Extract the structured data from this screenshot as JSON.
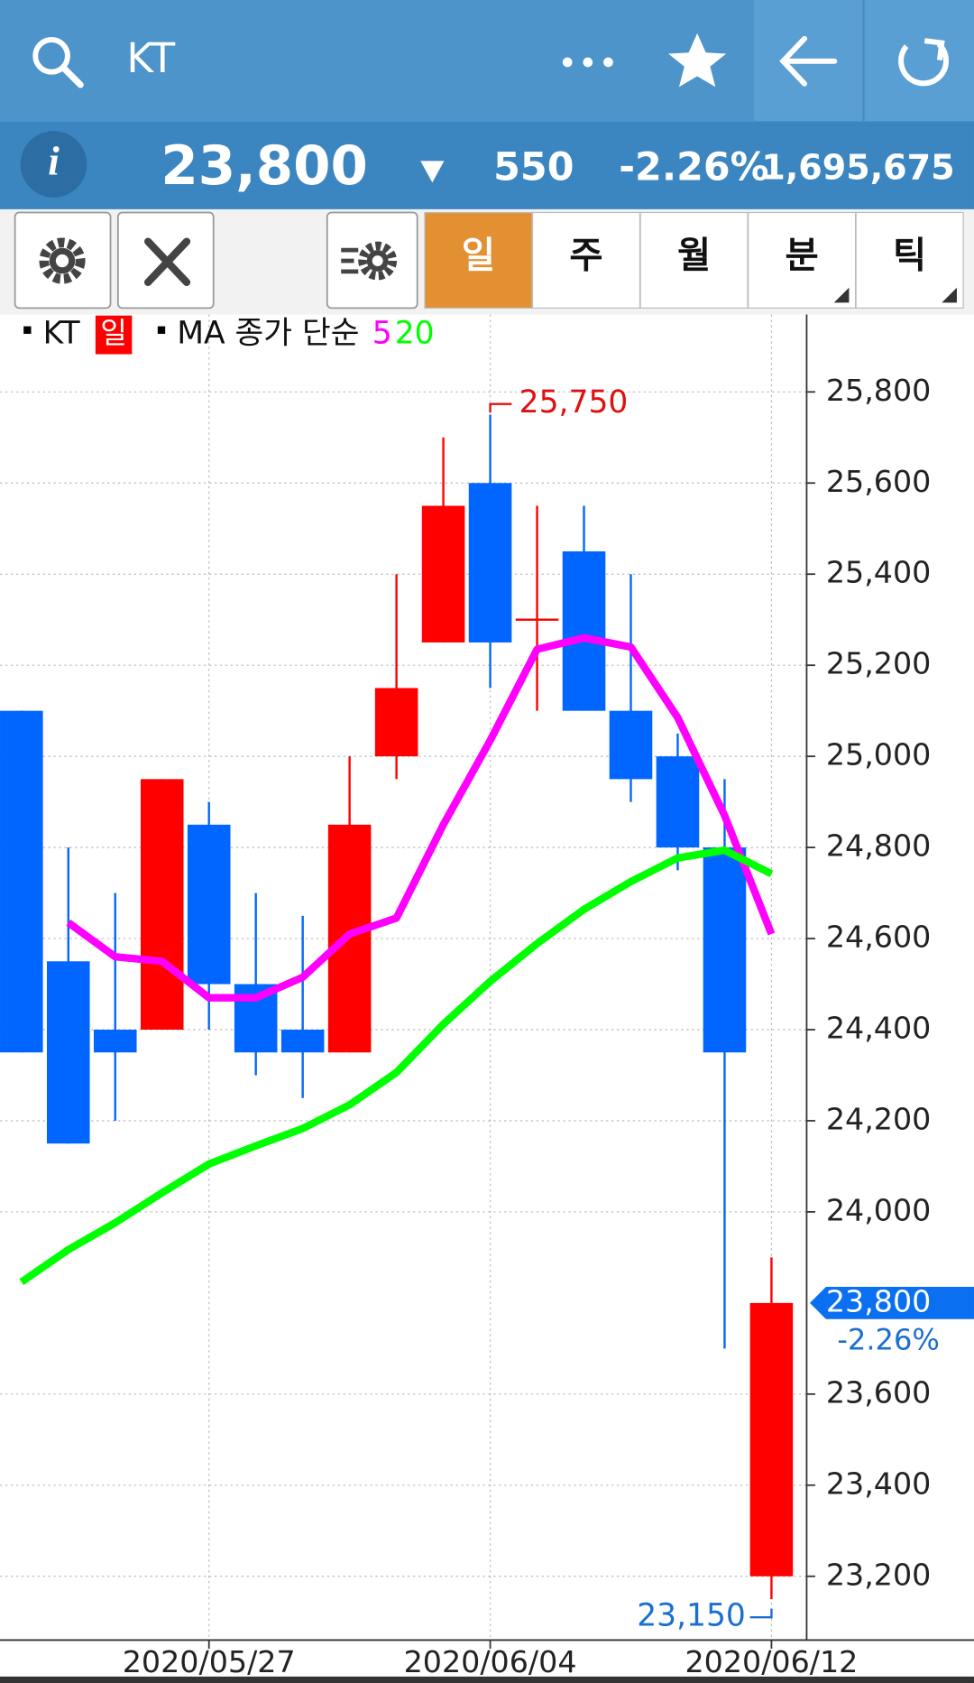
{
  "header": {
    "title": "KT"
  },
  "quote": {
    "price": "23,800",
    "change": "550",
    "change_pct": "-2.26%",
    "volume": "1,695,675"
  },
  "tabs": [
    "일",
    "주",
    "월",
    "분",
    "틱"
  ],
  "selected_tab": 0,
  "legend": {
    "symbol": "KT",
    "period": "일",
    "ma_label": "MA 종가 단순"
  },
  "chart_data": {
    "type": "candlestick",
    "categories": [
      null,
      null,
      null,
      null,
      "2020/05/27",
      null,
      null,
      null,
      null,
      null,
      "2020/06/04",
      null,
      null,
      null,
      null,
      null,
      "2020/06/12"
    ],
    "open": [
      25100,
      24550,
      24400,
      24400,
      24850,
      24500,
      24400,
      24350,
      25000,
      25250,
      25600,
      25300,
      25450,
      25100,
      25000,
      24800,
      23200
    ],
    "high": [
      25100,
      24800,
      24700,
      24950,
      24900,
      24700,
      24650,
      25000,
      25400,
      25700,
      25750,
      25550,
      25550,
      25400,
      25050,
      24950,
      23900
    ],
    "low": [
      24350,
      24150,
      24200,
      24400,
      24400,
      24300,
      24250,
      24350,
      24950,
      25250,
      25150,
      25100,
      25100,
      24900,
      24750,
      23700,
      23150
    ],
    "close": [
      24350,
      24150,
      24350,
      24950,
      24500,
      24350,
      24350,
      24850,
      25150,
      25550,
      25250,
      25300,
      25100,
      24950,
      24800,
      24350,
      23800
    ],
    "up_color": "#ff0000",
    "down_color": "#0066ff",
    "series": [
      {
        "name": "5",
        "color": "#ff00ff",
        "values": [
          null,
          24635,
          24560,
          24550,
          24470,
          24470,
          24515,
          24610,
          24645,
          24850,
          25035,
          25235,
          25260,
          25240,
          25085,
          24870,
          24610
        ]
      },
      {
        "name": "20",
        "color": "#00ff00",
        "values": [
          23846,
          23917,
          23976,
          24042,
          24105,
          24145,
          24183,
          24235,
          24306,
          24412,
          24506,
          24589,
          24664,
          24725,
          24777,
          24794,
          24742
        ]
      }
    ],
    "ylim": [
      23060,
      25970
    ],
    "yticks": [
      {
        "value": 23200,
        "label": "23,200"
      },
      {
        "value": 23400,
        "label": "23,400"
      },
      {
        "value": 23600,
        "label": "23,600"
      },
      {
        "value": 24000,
        "label": "24,000"
      },
      {
        "value": 24200,
        "label": "24,200"
      },
      {
        "value": 24400,
        "label": "24,400"
      },
      {
        "value": 24600,
        "label": "24,600"
      },
      {
        "value": 24800,
        "label": "24,800"
      },
      {
        "value": 25000,
        "label": "25,000"
      },
      {
        "value": 25200,
        "label": "25,200"
      },
      {
        "value": 25400,
        "label": "25,400"
      },
      {
        "value": 25600,
        "label": "25,600"
      },
      {
        "value": 25800,
        "label": "25,800"
      }
    ],
    "grid": true,
    "max_label": "25,750",
    "min_label": "23,150",
    "last_label": "23,800",
    "last_change": "-2.26%"
  }
}
